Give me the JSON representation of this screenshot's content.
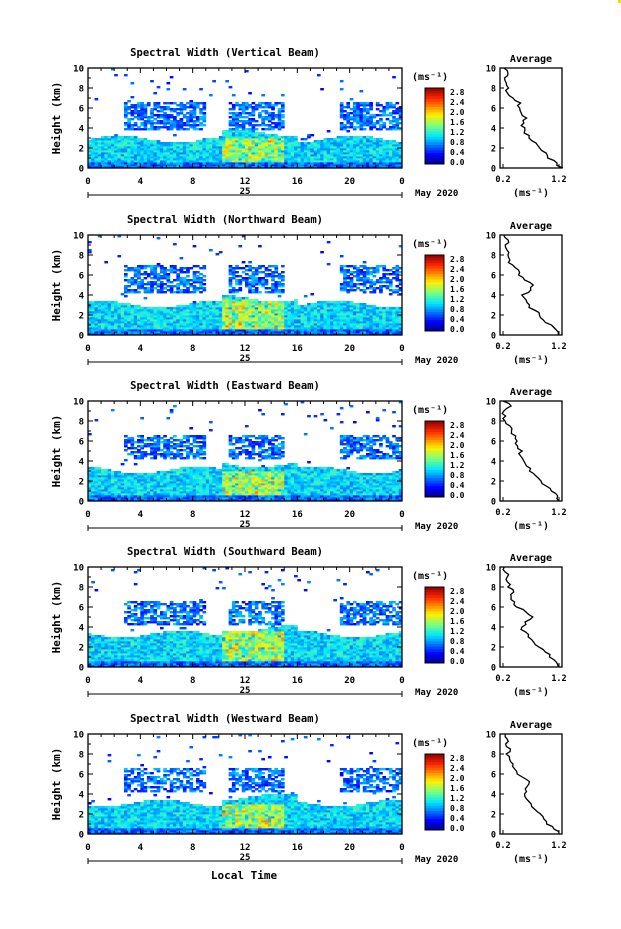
{
  "figure": {
    "panels": [
      {
        "title": "Spectral Width (Vertical Beam)"
      },
      {
        "title": "Spectral Width (Northward Beam)"
      },
      {
        "title": "Spectral Width (Eastward Beam)"
      },
      {
        "title": "Spectral Width (Southward Beam)"
      },
      {
        "title": "Spectral Width (Westward Beam)"
      }
    ],
    "ylabel": "Height (km)",
    "xlabel": "Local Time",
    "day_label": "25",
    "date_label": "May 2020",
    "colorbar_unit": "(ms⁻¹)",
    "profile_title": "Average",
    "profile_unit": "(ms⁻¹)",
    "colorbar_ticks": [
      "2.8",
      "2.4",
      "2.0",
      "1.6",
      "1.2",
      "0.8",
      "0.4",
      "0.0"
    ],
    "x_ticks": [
      "0",
      "4",
      "8",
      "12",
      "16",
      "20",
      "0"
    ],
    "y_ticks": [
      "0",
      "2",
      "4",
      "6",
      "8",
      "10"
    ],
    "profile_x_ticks": [
      "0.2",
      "1.2"
    ],
    "profile_y_ticks": [
      "0",
      "2",
      "4",
      "6",
      "8",
      "10"
    ]
  },
  "chart_data": [
    {
      "type": "heatmap",
      "title": "Spectral Width (Vertical Beam)",
      "xlabel": "Local Time",
      "ylabel": "Height (km)",
      "xlim": [
        0,
        24
      ],
      "ylim": [
        0,
        10
      ],
      "colorbar": {
        "label": "(ms⁻¹)",
        "range": [
          0.0,
          2.8
        ]
      },
      "layers_km": {
        "boundary_layer_top": 2.8,
        "elevated_layer": [
          3.8,
          6.5
        ]
      },
      "peak_region": {
        "time_hours": [
          10,
          15
        ],
        "height_km": [
          0.5,
          3.0
        ]
      },
      "average_profile": {
        "title": "Average",
        "xlabel": "(ms⁻¹)",
        "xlim": [
          0.2,
          1.2
        ],
        "height_km": [
          0,
          0.5,
          1,
          1.5,
          2,
          2.5,
          3,
          3.5,
          4,
          4.5,
          5,
          5.5,
          6,
          6.5,
          7,
          7.5,
          8,
          8.5,
          9,
          9.5,
          10
        ],
        "width": [
          1.25,
          1.15,
          1.0,
          0.95,
          0.85,
          0.78,
          0.65,
          0.6,
          0.58,
          0.55,
          0.62,
          0.55,
          0.48,
          0.52,
          0.4,
          0.3,
          0.28,
          0.25,
          0.2,
          0.3,
          0.22
        ]
      }
    },
    {
      "type": "heatmap",
      "title": "Spectral Width (Northward Beam)",
      "xlabel": "Local Time",
      "ylabel": "Height (km)",
      "xlim": [
        0,
        24
      ],
      "ylim": [
        0,
        10
      ],
      "colorbar": {
        "label": "(ms⁻¹)",
        "range": [
          0.0,
          2.8
        ]
      },
      "layers_km": {
        "boundary_layer_top": 3.0,
        "elevated_layer": [
          4.0,
          7.0
        ]
      },
      "peak_region": {
        "time_hours": [
          10,
          15
        ],
        "height_km": [
          0.5,
          3.5
        ]
      },
      "average_profile": {
        "title": "Average",
        "xlabel": "(ms⁻¹)",
        "xlim": [
          0.2,
          1.2
        ],
        "height_km": [
          0,
          0.5,
          1,
          1.5,
          2,
          2.5,
          3,
          3.5,
          4,
          4.5,
          5,
          5.5,
          6,
          6.5,
          7,
          7.5,
          8,
          8.5,
          9,
          9.5,
          10
        ],
        "width": [
          1.2,
          1.15,
          1.05,
          0.9,
          0.85,
          0.75,
          0.65,
          0.6,
          0.55,
          0.68,
          0.75,
          0.6,
          0.5,
          0.45,
          0.38,
          0.3,
          0.28,
          0.25,
          0.22,
          0.3,
          0.2
        ]
      }
    },
    {
      "type": "heatmap",
      "title": "Spectral Width (Eastward Beam)",
      "xlabel": "Local Time",
      "ylabel": "Height (km)",
      "xlim": [
        0,
        24
      ],
      "ylim": [
        0,
        10
      ],
      "colorbar": {
        "label": "(ms⁻¹)",
        "range": [
          0.0,
          2.8
        ]
      },
      "layers_km": {
        "boundary_layer_top": 3.0,
        "elevated_layer": [
          4.0,
          6.5
        ]
      },
      "peak_region": {
        "time_hours": [
          10,
          15
        ],
        "height_km": [
          0.5,
          3.0
        ]
      },
      "average_profile": {
        "title": "Average",
        "xlabel": "(ms⁻¹)",
        "xlim": [
          0.2,
          1.2
        ],
        "height_km": [
          0,
          0.5,
          1,
          1.5,
          2,
          2.5,
          3,
          3.5,
          4,
          4.5,
          5,
          5.5,
          6,
          6.5,
          7,
          7.5,
          8,
          8.5,
          9,
          9.5,
          10
        ],
        "width": [
          1.2,
          1.15,
          1.05,
          0.95,
          0.88,
          0.8,
          0.7,
          0.62,
          0.55,
          0.5,
          0.52,
          0.48,
          0.45,
          0.42,
          0.35,
          0.3,
          0.25,
          0.22,
          0.2,
          0.32,
          0.22
        ]
      }
    },
    {
      "type": "heatmap",
      "title": "Spectral Width (Southward Beam)",
      "xlabel": "Local Time",
      "ylabel": "Height (km)",
      "xlim": [
        0,
        24
      ],
      "ylim": [
        0,
        10
      ],
      "colorbar": {
        "label": "(ms⁻¹)",
        "range": [
          0.0,
          2.8
        ]
      },
      "layers_km": {
        "boundary_layer_top": 3.2,
        "elevated_layer": [
          4.0,
          6.5
        ]
      },
      "peak_region": {
        "time_hours": [
          10,
          15
        ],
        "height_km": [
          0.5,
          3.5
        ]
      },
      "average_profile": {
        "title": "Average",
        "xlabel": "(ms⁻¹)",
        "xlim": [
          0.2,
          1.2
        ],
        "height_km": [
          0,
          0.5,
          1,
          1.5,
          2,
          2.5,
          3,
          3.5,
          4,
          4.5,
          5,
          5.5,
          6,
          6.5,
          7,
          7.5,
          8,
          8.5,
          9,
          9.5,
          10
        ],
        "width": [
          1.2,
          1.15,
          1.05,
          0.95,
          0.85,
          0.75,
          0.65,
          0.58,
          0.55,
          0.62,
          0.72,
          0.6,
          0.45,
          0.4,
          0.35,
          0.4,
          0.3,
          0.28,
          0.3,
          0.25,
          0.22
        ]
      }
    },
    {
      "type": "heatmap",
      "title": "Spectral Width (Westward Beam)",
      "xlabel": "Local Time",
      "ylabel": "Height (km)",
      "xlim": [
        0,
        24
      ],
      "ylim": [
        0,
        10
      ],
      "colorbar": {
        "label": "(ms⁻¹)",
        "range": [
          0.0,
          2.8
        ]
      },
      "layers_km": {
        "boundary_layer_top": 3.0,
        "elevated_layer": [
          4.0,
          6.5
        ]
      },
      "peak_region": {
        "time_hours": [
          10,
          15
        ],
        "height_km": [
          0.5,
          3.0
        ]
      },
      "average_profile": {
        "title": "Average",
        "xlabel": "(ms⁻¹)",
        "xlim": [
          0.2,
          1.2
        ],
        "height_km": [
          0,
          0.5,
          1,
          1.5,
          2,
          2.5,
          3,
          3.5,
          4,
          4.5,
          5,
          5.5,
          6,
          6.5,
          7,
          7.5,
          8,
          8.5,
          9,
          9.5,
          10
        ],
        "width": [
          1.2,
          1.1,
          1.0,
          0.92,
          0.85,
          0.78,
          0.68,
          0.6,
          0.58,
          0.6,
          0.68,
          0.6,
          0.48,
          0.42,
          0.36,
          0.3,
          0.28,
          0.32,
          0.24,
          0.3,
          0.22
        ]
      }
    }
  ]
}
